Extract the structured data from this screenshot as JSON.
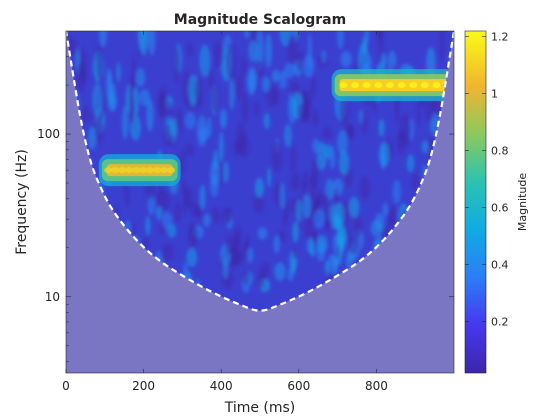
{
  "chart_data": {
    "type": "heatmap",
    "title": "Magnitude Scalogram",
    "xlabel": "Time (ms)",
    "ylabel": "Frequency (Hz)",
    "xlim": [
      0,
      1000
    ],
    "ylim": [
      3.4,
      430
    ],
    "yscale": "log",
    "x_ticks": [
      0,
      200,
      400,
      600,
      800
    ],
    "x_tick_labels": [
      "0",
      "200",
      "400",
      "600",
      "800"
    ],
    "y_ticks": [
      10,
      100
    ],
    "y_tick_labels": [
      "10",
      "100"
    ],
    "colormap": "parula",
    "colorbar": {
      "label": "Magnitude",
      "range": [
        0.02,
        1.22
      ],
      "ticks": [
        0.2,
        0.4,
        0.6,
        0.8,
        1,
        1.2
      ],
      "tick_labels": [
        "0.2",
        "0.4",
        "0.6",
        "0.8",
        "1",
        "1.2"
      ]
    },
    "background_magnitude": 0.12,
    "shaded_outside_cone": true,
    "cone_of_influence": {
      "t": [
        0,
        50,
        100,
        150,
        200,
        250,
        300,
        350,
        400,
        450,
        500,
        550,
        600,
        650,
        700,
        750,
        800,
        850,
        900,
        950,
        1000
      ],
      "f": [
        430,
        80,
        40,
        27,
        20,
        16,
        13.5,
        11.5,
        10,
        8.9,
        8,
        8.9,
        10,
        11.5,
        13.5,
        16,
        20,
        27,
        40,
        80,
        430
      ],
      "edge_style": "white dashed"
    },
    "features": [
      {
        "t_start": 100,
        "t_end": 280,
        "frequency": 60,
        "peak_magnitude": 1.0
      },
      {
        "t_start": 700,
        "t_end": 1000,
        "frequency": 200,
        "peak_magnitude": 1.1
      }
    ]
  },
  "colors": {
    "background_cone": "#3b3fd0",
    "outside_cone": "#7a76c4",
    "cone_edge": "#ffffff",
    "axis": "#262626"
  }
}
